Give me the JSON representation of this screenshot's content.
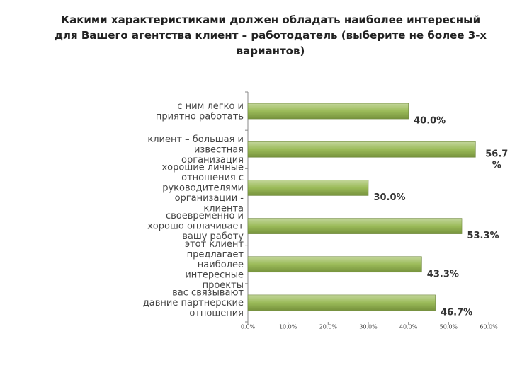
{
  "chart_data": {
    "type": "hbar",
    "title": "Какими характеристиками должен обладать наиболее интересный\nдля Вашего агентства клиент – работодатель (выберите не более 3-х\nвариантов)",
    "categories": [
      "с ним легко и\nприятно работать",
      "клиент – большая и\nизвестная\nорганизация",
      "хорошие личные\nотношения с\nруководителями\nорганизации -\nклиента",
      "своевременно и\nхорошо оплачивает\nвашу работу",
      "этот клиент\nпредлагает\nнаиболее\nинтересные\nпроекты",
      "вас связывают\nдавние партнерские\nотношения"
    ],
    "values": [
      40.0,
      56.7,
      30.0,
      53.3,
      43.3,
      46.7
    ],
    "value_labels": [
      "40.0%",
      "56.7\n%",
      "30.0%",
      "53.3%",
      "43.3%",
      "46.7%"
    ],
    "color": "#9bbb59",
    "xlim": [
      0,
      60
    ],
    "xticks": [
      {
        "value": 0,
        "label": "0.0%"
      },
      {
        "value": 10,
        "label": "10.0%"
      },
      {
        "value": 20,
        "label": "20.0%"
      },
      {
        "value": 30,
        "label": "30.0%"
      },
      {
        "value": 40,
        "label": "40.0%"
      },
      {
        "value": 50,
        "label": "50.0%"
      },
      {
        "value": 60,
        "label": "60.0%"
      }
    ]
  }
}
